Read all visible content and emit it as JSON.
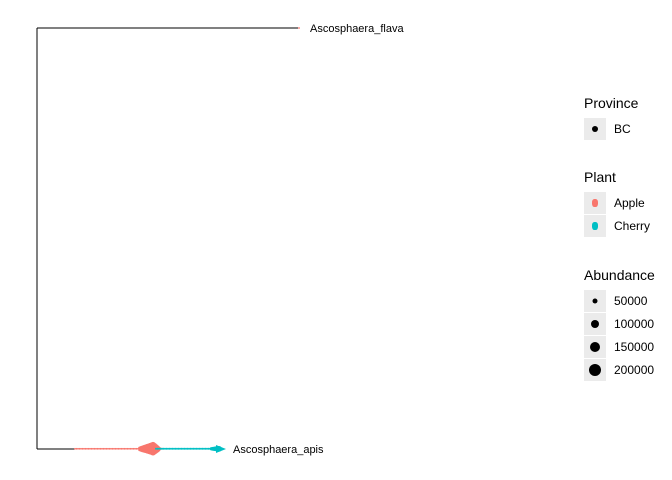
{
  "tree": {
    "tips": [
      {
        "id": "flava",
        "label": "Ascosphaera_flava",
        "color": "#F8766D"
      },
      {
        "id": "apis",
        "label": "Ascosphaera_apis"
      }
    ]
  },
  "legend": {
    "province": {
      "title": "Province",
      "items": [
        {
          "label": "BC",
          "color": "#000000"
        }
      ]
    },
    "plant": {
      "title": "Plant",
      "items": [
        {
          "label": "Apple",
          "color": "#F8766D"
        },
        {
          "label": "Cherry",
          "color": "#00BFC4"
        }
      ]
    },
    "abundance": {
      "title": "Abundance",
      "items": [
        {
          "label": "50000",
          "value": 50000
        },
        {
          "label": "100000",
          "value": 100000
        },
        {
          "label": "150000",
          "value": 150000
        },
        {
          "label": "200000",
          "value": 200000
        }
      ]
    }
  },
  "colors": {
    "apple": "#F8766D",
    "cherry": "#00BFC4",
    "branch": "#000000"
  }
}
